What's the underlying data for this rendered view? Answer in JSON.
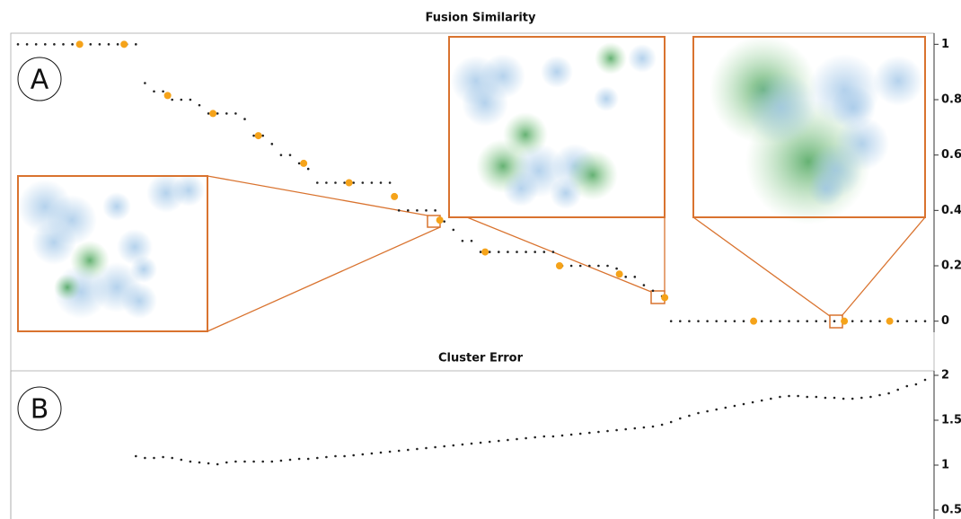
{
  "chart_data": [
    {
      "type": "scatter",
      "title": "Fusion Similarity",
      "panel_label": "A",
      "xlim": [
        0,
        100
      ],
      "ylim": [
        -0.04,
        1.04
      ],
      "yticks": [
        0,
        0.2,
        0.4,
        0.6,
        0.8,
        1
      ],
      "grid": false,
      "series": [
        {
          "color": "#222222",
          "x": [
            0,
            1,
            2,
            3,
            4,
            5,
            6,
            7,
            8,
            9,
            10,
            11,
            12,
            13,
            14,
            15,
            16,
            17,
            18,
            19,
            20,
            21,
            22,
            23,
            24,
            25,
            26,
            27,
            28,
            29,
            30,
            31,
            32,
            33,
            34,
            35,
            36,
            37,
            38,
            39,
            40,
            41,
            42,
            43,
            44,
            45,
            46,
            47,
            48,
            49,
            50,
            51,
            52,
            53,
            54,
            55,
            56,
            57,
            58,
            59,
            60,
            61,
            62,
            63,
            64,
            65,
            66,
            67,
            68,
            69,
            70,
            71,
            72,
            73,
            74,
            75,
            76,
            77,
            78,
            79,
            80,
            81,
            82,
            83,
            84,
            85,
            86,
            87,
            88,
            89,
            90,
            91,
            92,
            93,
            94,
            95,
            96,
            97,
            98,
            99,
            100
          ],
          "values": [
            1,
            1,
            1,
            1,
            1,
            1,
            1,
            1,
            1,
            1,
            1,
            1,
            1,
            1,
            0.86,
            0.83,
            0.83,
            0.8,
            0.8,
            0.8,
            0.78,
            0.75,
            0.75,
            0.75,
            0.75,
            0.73,
            0.67,
            0.67,
            0.64,
            0.6,
            0.6,
            0.57,
            0.55,
            0.5,
            0.5,
            0.5,
            0.5,
            0.5,
            0.5,
            0.5,
            0.5,
            0.5,
            0.4,
            0.4,
            0.4,
            0.4,
            0.4,
            0.36,
            0.33,
            0.29,
            0.29,
            0.25,
            0.25,
            0.25,
            0.25,
            0.25,
            0.25,
            0.25,
            0.25,
            0.25,
            0.2,
            0.2,
            0.2,
            0.2,
            0.2,
            0.2,
            0.19,
            0.16,
            0.16,
            0.13,
            0.11,
            0.09,
            0,
            0,
            0,
            0,
            0,
            0,
            0,
            0,
            0,
            0,
            0,
            0,
            0,
            0,
            0,
            0,
            0,
            0,
            0,
            0,
            0,
            0,
            0,
            0,
            0,
            0,
            0,
            0,
            0
          ]
        },
        {
          "color": "#f5a31a",
          "x": [
            6.8,
            11.7,
            16.5,
            21.5,
            26.5,
            31.5,
            36.5,
            41.5,
            46.5,
            51.5,
            59.7,
            66.3,
            71.3,
            81.1,
            91.1,
            96.1
          ],
          "values": [
            1,
            1,
            0.815,
            0.75,
            0.67,
            0.57,
            0.5,
            0.45,
            0.365,
            0.25,
            0.2,
            0.17,
            0.085,
            0,
            0,
            0
          ]
        }
      ]
    },
    {
      "type": "scatter",
      "title": "Cluster Error",
      "panel_label": "B",
      "xlim": [
        0,
        100
      ],
      "ylim": [
        0.4,
        2.05
      ],
      "yticks": [
        0.5,
        1,
        1.5,
        2
      ],
      "grid": false,
      "series": [
        {
          "color": "#222222",
          "x": [
            13,
            14,
            15,
            16,
            17,
            18,
            19,
            20,
            21,
            22,
            23,
            24,
            25,
            26,
            27,
            28,
            29,
            30,
            31,
            32,
            33,
            34,
            35,
            36,
            37,
            38,
            39,
            40,
            41,
            42,
            43,
            44,
            45,
            46,
            47,
            48,
            49,
            50,
            51,
            52,
            53,
            54,
            55,
            56,
            57,
            58,
            59,
            60,
            61,
            62,
            63,
            64,
            65,
            66,
            67,
            68,
            69,
            70,
            71,
            72,
            73,
            74,
            75,
            76,
            77,
            78,
            79,
            80,
            81,
            82,
            83,
            84,
            85,
            86,
            87,
            88,
            89,
            90,
            91,
            92,
            93,
            94,
            95,
            96,
            97,
            98,
            99,
            100
          ],
          "values": [
            1.1,
            1.08,
            1.08,
            1.09,
            1.08,
            1.06,
            1.04,
            1.03,
            1.02,
            1.01,
            1.03,
            1.04,
            1.04,
            1.04,
            1.04,
            1.04,
            1.05,
            1.06,
            1.07,
            1.07,
            1.08,
            1.09,
            1.1,
            1.1,
            1.11,
            1.12,
            1.13,
            1.14,
            1.15,
            1.16,
            1.17,
            1.18,
            1.19,
            1.2,
            1.21,
            1.22,
            1.23,
            1.24,
            1.25,
            1.26,
            1.27,
            1.28,
            1.29,
            1.3,
            1.31,
            1.32,
            1.32,
            1.33,
            1.34,
            1.35,
            1.36,
            1.37,
            1.38,
            1.39,
            1.4,
            1.41,
            1.42,
            1.43,
            1.45,
            1.48,
            1.52,
            1.55,
            1.58,
            1.6,
            1.62,
            1.64,
            1.66,
            1.68,
            1.7,
            1.72,
            1.74,
            1.76,
            1.77,
            1.77,
            1.76,
            1.76,
            1.75,
            1.75,
            1.74,
            1.74,
            1.75,
            1.76,
            1.78,
            1.8,
            1.84,
            1.88,
            1.9,
            1.95
          ]
        }
      ]
    }
  ]
}
